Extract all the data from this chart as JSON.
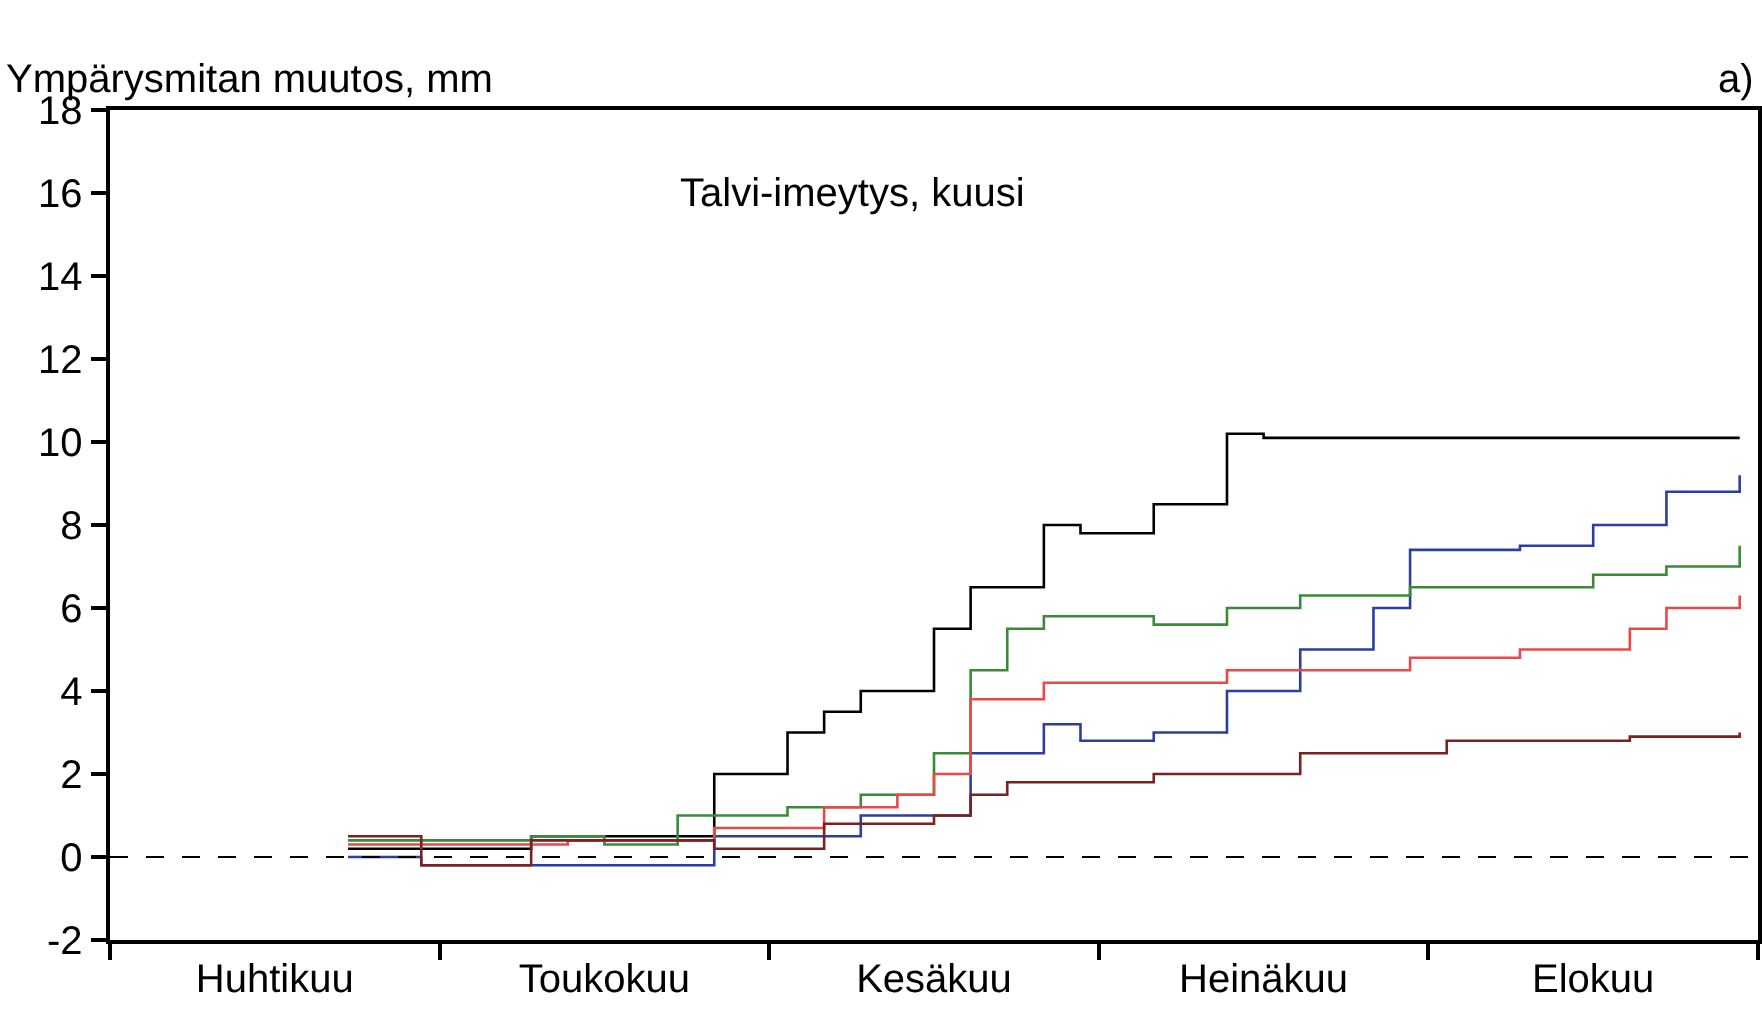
{
  "chart_data": {
    "type": "step",
    "title": "Talvi-imeytys, kuusi",
    "ylabel": "Ympärysmitan muutos, mm",
    "annotations": [
      "a)"
    ],
    "categories": [
      null,
      null,
      null,
      null,
      "Huhtikuu",
      null,
      null,
      null,
      null,
      null,
      null,
      null,
      null,
      "Toukokuu",
      null,
      null,
      null,
      null,
      null,
      null,
      null,
      null,
      "Kesäkuu",
      null,
      null,
      null,
      null,
      null,
      null,
      null,
      null,
      "Heinäkuu",
      null,
      null,
      null,
      null,
      null,
      null,
      null,
      null,
      "Elokuu",
      null,
      null,
      null,
      null
    ],
    "ylim": [
      -2,
      18
    ],
    "yticks": [
      -2,
      0,
      2,
      4,
      6,
      8,
      10,
      12,
      14,
      16,
      18
    ],
    "grid": false,
    "line_style": "solid",
    "marker": "none",
    "ref_lines": [
      {
        "axis": "y",
        "value": 0,
        "label": null,
        "color": "#000000",
        "line_style": "dashed"
      }
    ],
    "series": [
      {
        "color": "#000000",
        "values": [
          null,
          null,
          null,
          null,
          null,
          null,
          0.2,
          0.2,
          0.2,
          0.2,
          0.2,
          0.5,
          0.5,
          0.5,
          0.5,
          0.5,
          2,
          2,
          3,
          3.5,
          4,
          4,
          5.5,
          6.5,
          6.5,
          8,
          7.8,
          7.8,
          8.5,
          8.5,
          10.2,
          10.1,
          10.1,
          10.1,
          10.1,
          10.1,
          10.1,
          10.1,
          10.1,
          10.1,
          10.1,
          10.1,
          10.1,
          10.1,
          10.1
        ]
      },
      {
        "color": "#2a3f9f",
        "values": [
          null,
          null,
          null,
          null,
          null,
          null,
          0,
          0,
          -0.2,
          -0.2,
          -0.2,
          -0.2,
          -0.2,
          -0.2,
          -0.2,
          -0.2,
          0.5,
          0.5,
          0.5,
          0.5,
          1,
          1,
          1,
          2.5,
          2.5,
          3.2,
          2.8,
          2.8,
          3,
          3,
          4,
          4,
          5,
          5,
          6,
          7.4,
          7.4,
          7.4,
          7.5,
          7.5,
          8,
          8,
          8.8,
          8.8,
          9.2
        ]
      },
      {
        "color": "#3a8a3a",
        "values": [
          null,
          null,
          null,
          null,
          null,
          null,
          0.4,
          0.4,
          0.4,
          0.4,
          0.4,
          0.5,
          0.5,
          0.3,
          0.3,
          1,
          1,
          1,
          1.2,
          1.2,
          1.5,
          1.5,
          2.5,
          4.5,
          5.5,
          5.8,
          5.8,
          5.8,
          5.6,
          5.6,
          6,
          6,
          6.3,
          6.3,
          6.3,
          6.5,
          6.5,
          6.5,
          6.5,
          6.5,
          6.8,
          6.8,
          7,
          7,
          7.5
        ]
      },
      {
        "color": "#e84a4a",
        "values": [
          null,
          null,
          null,
          null,
          null,
          null,
          0.3,
          0.3,
          0.3,
          0.3,
          0.3,
          0.3,
          0.4,
          0.4,
          0.4,
          0.4,
          0.7,
          0.7,
          0.7,
          1.2,
          1.2,
          1.5,
          2,
          3.8,
          3.8,
          4.2,
          4.2,
          4.2,
          4.2,
          4.2,
          4.5,
          4.5,
          4.5,
          4.5,
          4.5,
          4.8,
          4.8,
          4.8,
          5,
          5,
          5,
          5.5,
          6,
          6,
          6.3
        ]
      },
      {
        "color": "#7a2222",
        "values": [
          null,
          null,
          null,
          null,
          null,
          null,
          0.5,
          0.5,
          -0.2,
          -0.2,
          -0.2,
          0.4,
          0.4,
          0.4,
          0.4,
          0.4,
          0.2,
          0.2,
          0.2,
          0.8,
          0.8,
          0.8,
          1,
          1.5,
          1.8,
          1.8,
          1.8,
          1.8,
          2,
          2,
          2,
          2,
          2.5,
          2.5,
          2.5,
          2.5,
          2.8,
          2.8,
          2.8,
          2.8,
          2.8,
          2.9,
          2.9,
          2.9,
          3
        ]
      }
    ]
  }
}
